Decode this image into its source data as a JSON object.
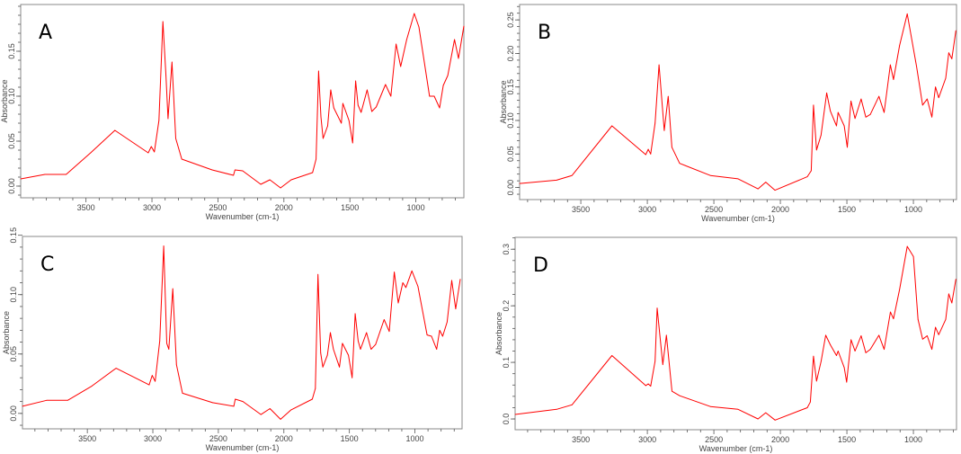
{
  "colors": {
    "line": "#ff0000",
    "frame": "#8a8a8a",
    "tick": "#555555"
  },
  "chart_data": [
    {
      "type": "line",
      "panel_label": "A",
      "xlabel": "Wavenumber (cm-1)",
      "ylabel": "Absorbance",
      "xlim": [
        3995,
        636
      ],
      "ylim": [
        -0.013,
        0.202
      ],
      "xticks": [
        {
          "v": 3500,
          "t": "3500"
        },
        {
          "v": 3000,
          "t": "3000"
        },
        {
          "v": 2500,
          "t": "2500"
        },
        {
          "v": 2000,
          "t": "2000"
        },
        {
          "v": 1500,
          "t": "1500"
        },
        {
          "v": 1000,
          "t": "1000"
        }
      ],
      "yticks": [
        {
          "v": 0,
          "t": "0.00"
        },
        {
          "v": 0.05,
          "t": "0.05"
        },
        {
          "v": 0.1,
          "t": "0.10"
        },
        {
          "v": 0.15,
          "t": "0.15"
        }
      ],
      "points": [
        [
          3995,
          0.008
        ],
        [
          3811,
          0.013
        ],
        [
          3650,
          0.013
        ],
        [
          3465,
          0.037
        ],
        [
          3281,
          0.062
        ],
        [
          3028,
          0.037
        ],
        [
          3005,
          0.044
        ],
        [
          2982,
          0.038
        ],
        [
          2947,
          0.073
        ],
        [
          2917,
          0.183
        ],
        [
          2894,
          0.123
        ],
        [
          2878,
          0.075
        ],
        [
          2848,
          0.138
        ],
        [
          2820,
          0.053
        ],
        [
          2774,
          0.03
        ],
        [
          2544,
          0.018
        ],
        [
          2382,
          0.012
        ],
        [
          2371,
          0.018
        ],
        [
          2313,
          0.017
        ],
        [
          2175,
          0.002
        ],
        [
          2106,
          0.007
        ],
        [
          2025,
          -0.002
        ],
        [
          1945,
          0.007
        ],
        [
          1783,
          0.015
        ],
        [
          1756,
          0.03
        ],
        [
          1737,
          0.128
        ],
        [
          1719,
          0.077
        ],
        [
          1703,
          0.053
        ],
        [
          1668,
          0.067
        ],
        [
          1645,
          0.107
        ],
        [
          1622,
          0.087
        ],
        [
          1565,
          0.07
        ],
        [
          1553,
          0.092
        ],
        [
          1507,
          0.073
        ],
        [
          1479,
          0.048
        ],
        [
          1456,
          0.117
        ],
        [
          1438,
          0.09
        ],
        [
          1415,
          0.082
        ],
        [
          1369,
          0.107
        ],
        [
          1334,
          0.083
        ],
        [
          1300,
          0.088
        ],
        [
          1230,
          0.113
        ],
        [
          1189,
          0.1
        ],
        [
          1150,
          0.158
        ],
        [
          1115,
          0.133
        ],
        [
          1069,
          0.163
        ],
        [
          1012,
          0.192
        ],
        [
          977,
          0.177
        ],
        [
          896,
          0.1
        ],
        [
          861,
          0.1
        ],
        [
          820,
          0.087
        ],
        [
          792,
          0.112
        ],
        [
          758,
          0.123
        ],
        [
          707,
          0.163
        ],
        [
          677,
          0.142
        ],
        [
          636,
          0.178
        ]
      ]
    },
    {
      "type": "line",
      "panel_label": "B",
      "xlabel": "Wavenumber (cm-1)",
      "ylabel": "Absorbance",
      "xlim": [
        3960,
        676
      ],
      "ylim": [
        -0.018,
        0.273
      ],
      "xticks": [
        {
          "v": 3500,
          "t": "3500"
        },
        {
          "v": 3000,
          "t": "3000"
        },
        {
          "v": 2500,
          "t": "2500"
        },
        {
          "v": 2000,
          "t": "2000"
        },
        {
          "v": 1500,
          "t": "1500"
        },
        {
          "v": 1000,
          "t": "1000"
        }
      ],
      "yticks": [
        {
          "v": 0,
          "t": "0.00"
        },
        {
          "v": 0.05,
          "t": "0.05"
        },
        {
          "v": 0.1,
          "t": "0.10"
        },
        {
          "v": 0.15,
          "t": "0.15"
        },
        {
          "v": 0.2,
          "t": "0.20"
        },
        {
          "v": 0.25,
          "t": "0.25"
        }
      ],
      "points": [
        [
          3960,
          0.006
        ],
        [
          3682,
          0.011
        ],
        [
          3566,
          0.018
        ],
        [
          3266,
          0.092
        ],
        [
          3012,
          0.049
        ],
        [
          2993,
          0.057
        ],
        [
          2975,
          0.05
        ],
        [
          2942,
          0.096
        ],
        [
          2912,
          0.183
        ],
        [
          2873,
          0.085
        ],
        [
          2843,
          0.136
        ],
        [
          2815,
          0.06
        ],
        [
          2757,
          0.036
        ],
        [
          2526,
          0.018
        ],
        [
          2318,
          0.013
        ],
        [
          2168,
          -0.002
        ],
        [
          2110,
          0.008
        ],
        [
          2040,
          -0.004
        ],
        [
          1798,
          0.016
        ],
        [
          1768,
          0.025
        ],
        [
          1751,
          0.123
        ],
        [
          1728,
          0.056
        ],
        [
          1694,
          0.078
        ],
        [
          1652,
          0.141
        ],
        [
          1624,
          0.114
        ],
        [
          1578,
          0.092
        ],
        [
          1566,
          0.112
        ],
        [
          1520,
          0.092
        ],
        [
          1497,
          0.06
        ],
        [
          1469,
          0.129
        ],
        [
          1439,
          0.103
        ],
        [
          1393,
          0.132
        ],
        [
          1358,
          0.105
        ],
        [
          1324,
          0.109
        ],
        [
          1259,
          0.136
        ],
        [
          1220,
          0.112
        ],
        [
          1173,
          0.183
        ],
        [
          1150,
          0.161
        ],
        [
          1104,
          0.212
        ],
        [
          1046,
          0.259
        ],
        [
          977,
          0.181
        ],
        [
          931,
          0.123
        ],
        [
          896,
          0.132
        ],
        [
          861,
          0.105
        ],
        [
          834,
          0.15
        ],
        [
          810,
          0.134
        ],
        [
          757,
          0.163
        ],
        [
          734,
          0.201
        ],
        [
          711,
          0.192
        ],
        [
          681,
          0.234
        ]
      ]
    },
    {
      "type": "line",
      "panel_label": "C",
      "xlabel": "Wavenumber (cm-1)",
      "ylabel": "Absorbance",
      "xlim": [
        3995,
        640
      ],
      "ylim": [
        -0.013,
        0.149
      ],
      "xticks": [
        {
          "v": 3500,
          "t": "3500"
        },
        {
          "v": 3000,
          "t": "3000"
        },
        {
          "v": 2500,
          "t": "2500"
        },
        {
          "v": 2000,
          "t": "2000"
        },
        {
          "v": 1500,
          "t": "1500"
        },
        {
          "v": 1000,
          "t": "1000"
        }
      ],
      "yticks": [
        {
          "v": 0,
          "t": "0.00"
        },
        {
          "v": 0.05,
          "t": "0.05"
        },
        {
          "v": 0.1,
          "t": "0.10"
        },
        {
          "v": 0.15,
          "t": "0.15"
        }
      ],
      "points": [
        [
          3995,
          0.006
        ],
        [
          3811,
          0.011
        ],
        [
          3650,
          0.011
        ],
        [
          3465,
          0.023
        ],
        [
          3281,
          0.038
        ],
        [
          3028,
          0.024
        ],
        [
          3005,
          0.032
        ],
        [
          2982,
          0.027
        ],
        [
          2947,
          0.061
        ],
        [
          2917,
          0.141
        ],
        [
          2894,
          0.059
        ],
        [
          2878,
          0.054
        ],
        [
          2848,
          0.105
        ],
        [
          2820,
          0.041
        ],
        [
          2774,
          0.017
        ],
        [
          2544,
          0.009
        ],
        [
          2382,
          0.006
        ],
        [
          2371,
          0.012
        ],
        [
          2313,
          0.01
        ],
        [
          2175,
          -0.001
        ],
        [
          2106,
          0.004
        ],
        [
          2025,
          -0.005
        ],
        [
          1945,
          0.003
        ],
        [
          1783,
          0.012
        ],
        [
          1760,
          0.021
        ],
        [
          1740,
          0.117
        ],
        [
          1719,
          0.051
        ],
        [
          1703,
          0.039
        ],
        [
          1668,
          0.049
        ],
        [
          1645,
          0.068
        ],
        [
          1622,
          0.054
        ],
        [
          1576,
          0.039
        ],
        [
          1553,
          0.059
        ],
        [
          1507,
          0.049
        ],
        [
          1479,
          0.03
        ],
        [
          1456,
          0.084
        ],
        [
          1433,
          0.061
        ],
        [
          1415,
          0.054
        ],
        [
          1369,
          0.068
        ],
        [
          1334,
          0.054
        ],
        [
          1300,
          0.058
        ],
        [
          1235,
          0.079
        ],
        [
          1196,
          0.069
        ],
        [
          1157,
          0.119
        ],
        [
          1127,
          0.093
        ],
        [
          1092,
          0.11
        ],
        [
          1069,
          0.106
        ],
        [
          1023,
          0.12
        ],
        [
          977,
          0.107
        ],
        [
          907,
          0.066
        ],
        [
          873,
          0.065
        ],
        [
          834,
          0.054
        ],
        [
          811,
          0.07
        ],
        [
          788,
          0.065
        ],
        [
          754,
          0.077
        ],
        [
          719,
          0.112
        ],
        [
          689,
          0.088
        ],
        [
          654,
          0.113
        ]
      ]
    },
    {
      "type": "line",
      "panel_label": "D",
      "xlabel": "Wavenumber (cm-1)",
      "ylabel": "Absorbance",
      "xlim": [
        3994,
        676
      ],
      "ylim": [
        -0.019,
        0.321
      ],
      "xticks": [
        {
          "v": 3500,
          "t": "3500"
        },
        {
          "v": 3000,
          "t": "3000"
        },
        {
          "v": 2500,
          "t": "2500"
        },
        {
          "v": 2000,
          "t": "2000"
        },
        {
          "v": 1500,
          "t": "1500"
        },
        {
          "v": 1000,
          "t": "1000"
        }
      ],
      "yticks": [
        {
          "v": 0,
          "t": "0.0"
        },
        {
          "v": 0.1,
          "t": "0.1"
        },
        {
          "v": 0.2,
          "t": "0.2"
        },
        {
          "v": 0.3,
          "t": "0.3"
        }
      ],
      "points": [
        [
          3994,
          0.008
        ],
        [
          3682,
          0.017
        ],
        [
          3566,
          0.025
        ],
        [
          3266,
          0.112
        ],
        [
          3012,
          0.059
        ],
        [
          2993,
          0.062
        ],
        [
          2975,
          0.058
        ],
        [
          2942,
          0.102
        ],
        [
          2926,
          0.196
        ],
        [
          2884,
          0.096
        ],
        [
          2857,
          0.148
        ],
        [
          2815,
          0.049
        ],
        [
          2757,
          0.041
        ],
        [
          2526,
          0.022
        ],
        [
          2318,
          0.017
        ],
        [
          2168,
          0.0
        ],
        [
          2110,
          0.011
        ],
        [
          2040,
          -0.002
        ],
        [
          1798,
          0.02
        ],
        [
          1775,
          0.03
        ],
        [
          1751,
          0.111
        ],
        [
          1728,
          0.067
        ],
        [
          1694,
          0.102
        ],
        [
          1659,
          0.148
        ],
        [
          1624,
          0.131
        ],
        [
          1578,
          0.112
        ],
        [
          1566,
          0.12
        ],
        [
          1520,
          0.091
        ],
        [
          1502,
          0.065
        ],
        [
          1469,
          0.14
        ],
        [
          1439,
          0.12
        ],
        [
          1393,
          0.147
        ],
        [
          1358,
          0.117
        ],
        [
          1324,
          0.123
        ],
        [
          1259,
          0.148
        ],
        [
          1220,
          0.123
        ],
        [
          1173,
          0.189
        ],
        [
          1150,
          0.177
        ],
        [
          1104,
          0.229
        ],
        [
          1046,
          0.305
        ],
        [
          1000,
          0.287
        ],
        [
          965,
          0.176
        ],
        [
          931,
          0.141
        ],
        [
          896,
          0.147
        ],
        [
          861,
          0.123
        ],
        [
          834,
          0.162
        ],
        [
          810,
          0.149
        ],
        [
          757,
          0.176
        ],
        [
          734,
          0.221
        ],
        [
          711,
          0.205
        ],
        [
          681,
          0.247
        ]
      ]
    }
  ]
}
